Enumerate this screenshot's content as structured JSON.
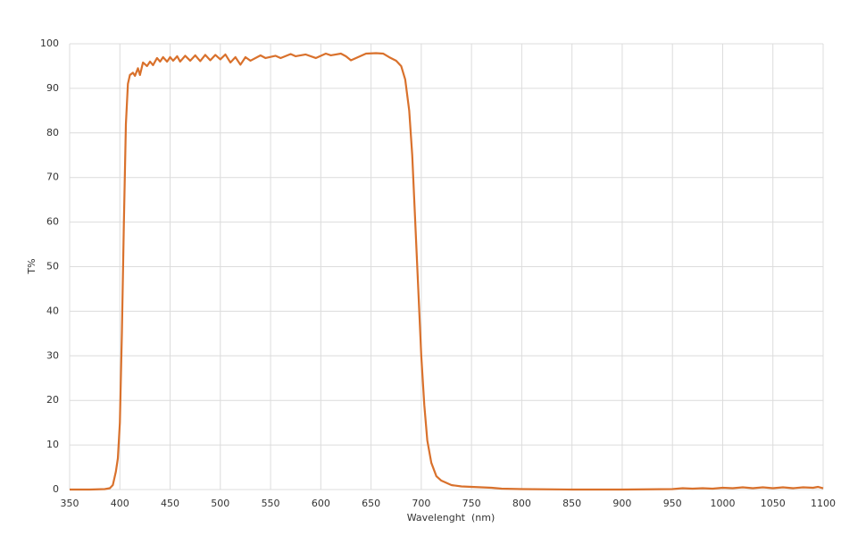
{
  "chart_data": {
    "type": "line",
    "x_label": "Wavelenght  (nm)",
    "y_label": "T%",
    "xlim": [
      350,
      1100
    ],
    "ylim": [
      0,
      100
    ],
    "xticks": [
      350,
      400,
      450,
      500,
      550,
      600,
      650,
      700,
      750,
      800,
      850,
      900,
      950,
      1000,
      1050,
      1100
    ],
    "yticks": [
      0,
      10,
      20,
      30,
      40,
      50,
      60,
      70,
      80,
      90,
      100
    ],
    "grid": true,
    "series": [
      {
        "color": "#d9712c",
        "x": [
          350,
          370,
          385,
          390,
          393,
          396,
          398,
          400,
          402,
          404,
          406,
          408,
          410,
          413,
          415,
          418,
          420,
          423,
          427,
          430,
          433,
          437,
          440,
          443,
          447,
          450,
          453,
          457,
          460,
          465,
          470,
          475,
          480,
          485,
          490,
          495,
          500,
          505,
          510,
          515,
          520,
          525,
          530,
          540,
          545,
          555,
          560,
          570,
          575,
          585,
          595,
          605,
          610,
          620,
          625,
          630,
          635,
          645,
          655,
          662,
          668,
          675,
          680,
          684,
          688,
          691,
          694,
          697,
          700,
          703,
          706,
          710,
          715,
          720,
          730,
          740,
          760,
          770,
          780,
          800,
          850,
          900,
          950,
          960,
          970,
          980,
          990,
          1000,
          1010,
          1020,
          1030,
          1040,
          1050,
          1060,
          1070,
          1080,
          1090,
          1095,
          1100
        ],
        "values": [
          0,
          0,
          0.1,
          0.3,
          1,
          4,
          7,
          15,
          35,
          60,
          82,
          91,
          93,
          93.5,
          92.8,
          94.5,
          93,
          95.8,
          95,
          96,
          95.2,
          96.8,
          96,
          97,
          96,
          97,
          96.2,
          97.2,
          96,
          97.3,
          96.2,
          97.4,
          96.1,
          97.5,
          96.3,
          97.5,
          96.5,
          97.6,
          95.8,
          97,
          95.3,
          97,
          96.2,
          97.4,
          96.8,
          97.3,
          96.8,
          97.7,
          97.2,
          97.6,
          96.8,
          97.8,
          97.4,
          97.8,
          97.2,
          96.3,
          96.8,
          97.8,
          97.9,
          97.8,
          97,
          96.2,
          95,
          92,
          85,
          75,
          60,
          45,
          30,
          19,
          11,
          6,
          3,
          2,
          1,
          0.7,
          0.5,
          0.4,
          0.2,
          0.1,
          0,
          0,
          0.1,
          0.3,
          0.2,
          0.3,
          0.2,
          0.4,
          0.3,
          0.5,
          0.3,
          0.5,
          0.3,
          0.5,
          0.3,
          0.5,
          0.4,
          0.6,
          0.3
        ]
      }
    ]
  }
}
